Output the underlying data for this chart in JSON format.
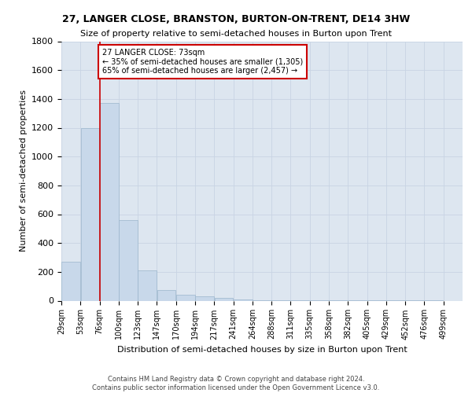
{
  "title": "27, LANGER CLOSE, BRANSTON, BURTON-ON-TRENT, DE14 3HW",
  "subtitle": "Size of property relative to semi-detached houses in Burton upon Trent",
  "xlabel": "Distribution of semi-detached houses by size in Burton upon Trent",
  "ylabel": "Number of semi-detached properties",
  "footnote": "Contains HM Land Registry data © Crown copyright and database right 2024.\nContains public sector information licensed under the Open Government Licence v3.0.",
  "property_label": "27 LANGER CLOSE: 73sqm",
  "pct_smaller": 35,
  "pct_larger": 65,
  "count_smaller": 1305,
  "count_larger": 2457,
  "bar_color": "#c8d8ea",
  "bar_edge_color": "#9ab5cc",
  "marker_color": "#cc0000",
  "annotation_box_color": "#cc0000",
  "grid_color": "#c8d4e4",
  "background_color": "#dde6f0",
  "bin_labels": [
    "29sqm",
    "53sqm",
    "76sqm",
    "100sqm",
    "123sqm",
    "147sqm",
    "170sqm",
    "194sqm",
    "217sqm",
    "241sqm",
    "264sqm",
    "288sqm",
    "311sqm",
    "335sqm",
    "358sqm",
    "382sqm",
    "405sqm",
    "429sqm",
    "452sqm",
    "476sqm",
    "499sqm"
  ],
  "bar_heights": [
    270,
    1200,
    1370,
    560,
    210,
    75,
    40,
    30,
    20,
    10,
    5,
    5,
    3,
    2,
    2,
    2,
    1,
    1,
    1,
    1
  ],
  "property_bin_index": 2,
  "ylim": [
    0,
    1800
  ],
  "yticks": [
    0,
    200,
    400,
    600,
    800,
    1000,
    1200,
    1400,
    1600,
    1800
  ],
  "n_bins": 21,
  "annotation_text_line1": "27 LANGER CLOSE: 73sqm",
  "annotation_text_line2": "← 35% of semi-detached houses are smaller (1,305)",
  "annotation_text_line3": "65% of semi-detached houses are larger (2,457) →"
}
